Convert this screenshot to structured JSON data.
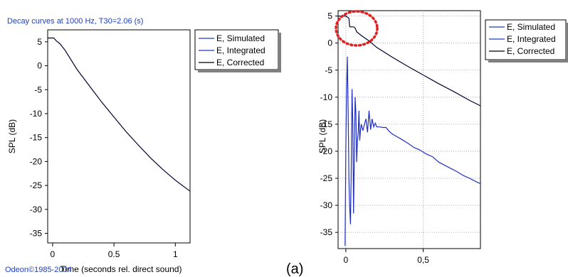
{
  "caption": "(a)",
  "chart_data": [
    {
      "type": "line",
      "title": "Decay curves at 1000 Hz, T30=2.06 (s)",
      "xlabel": "Time (seconds rel. direct sound)",
      "ylabel": "SPL (dB)",
      "footer": "Odeon©1985-2004",
      "xlim": [
        -0.04,
        1.12
      ],
      "ylim": [
        -37,
        7.5
      ],
      "x_ticks": [
        0,
        0.5,
        1
      ],
      "x_tick_labels": [
        "0",
        "0.5",
        "1"
      ],
      "y_ticks": [
        5,
        0,
        -5,
        -10,
        -15,
        -20,
        -25,
        -30,
        -35
      ],
      "y_tick_labels": [
        "5",
        "0",
        "-5",
        "-10",
        "-15",
        "-20",
        "-25",
        "-30",
        "-35"
      ],
      "grid": false,
      "legend_position": "top-right-outside",
      "legend": [
        {
          "label": "E, Simulated",
          "color": "#1f3fbf"
        },
        {
          "label": "E, Integrated",
          "color": "#1f3fbf"
        },
        {
          "label": "E, Corrected",
          "color": "#000000"
        }
      ],
      "series": [
        {
          "name": "E, Corrected",
          "color": "#000030",
          "x": [
            -0.04,
            0.01,
            0.03,
            0.06,
            0.1,
            0.2,
            0.3,
            0.4,
            0.5,
            0.6,
            0.7,
            0.8,
            0.9,
            1.0,
            1.12
          ],
          "y": [
            5.8,
            5.8,
            5.2,
            4.6,
            3.3,
            -0.8,
            -4.2,
            -7.6,
            -10.7,
            -13.8,
            -16.6,
            -19.3,
            -21.7,
            -23.9,
            -26.2
          ]
        }
      ]
    },
    {
      "type": "line",
      "title": "",
      "xlabel": "",
      "ylabel": "SPL (dB)",
      "xlim": [
        -0.05,
        0.87
      ],
      "ylim": [
        -38,
        6
      ],
      "x_ticks": [
        0,
        0.5
      ],
      "x_tick_labels": [
        "0",
        "0,5"
      ],
      "y_ticks": [
        5,
        0,
        -5,
        -10,
        -15,
        -20,
        -25,
        -30,
        -35
      ],
      "y_tick_labels": [
        "5",
        "0",
        "-5",
        "-10",
        "-15",
        "-20",
        "-25",
        "-30",
        "-35"
      ],
      "grid": true,
      "legend_position": "top-right-outside",
      "annotation": "dotted red circle around the initial plateau",
      "legend": [
        {
          "label": "E, Simulated",
          "color": "#1f3fbf"
        },
        {
          "label": "E, Integrated",
          "color": "#1f3fbf"
        },
        {
          "label": "E, Corrected",
          "color": "#000000"
        }
      ],
      "series": [
        {
          "name": "E, Corrected",
          "color": "#000030",
          "x": [
            -0.05,
            0.0,
            0.02,
            0.025,
            0.05,
            0.06,
            0.07,
            0.1,
            0.15,
            0.2,
            0.3,
            0.4,
            0.5,
            0.6,
            0.7,
            0.8,
            0.87
          ],
          "y": [
            5.0,
            5.0,
            4.6,
            3.0,
            3.0,
            2.8,
            2.1,
            1.4,
            0.4,
            -0.8,
            -2.6,
            -4.3,
            -5.9,
            -7.5,
            -9.0,
            -10.6,
            -11.6
          ]
        },
        {
          "name": "E, Simulated",
          "color": "#2030c0",
          "x": [
            -0.005,
            0.0,
            0.005,
            0.01,
            0.015,
            0.02,
            0.025,
            0.03,
            0.035,
            0.04,
            0.045,
            0.05,
            0.055,
            0.06,
            0.065,
            0.07,
            0.075,
            0.08,
            0.085,
            0.09,
            0.095,
            0.1,
            0.11,
            0.12,
            0.13,
            0.14,
            0.15,
            0.16,
            0.17,
            0.18,
            0.19,
            0.2,
            0.22,
            0.24,
            0.26,
            0.28,
            0.3,
            0.33,
            0.36,
            0.4,
            0.44,
            0.48,
            0.52,
            0.56,
            0.6,
            0.64,
            0.68,
            0.72,
            0.76,
            0.8,
            0.84,
            0.87
          ],
          "y": [
            -37.5,
            -19.0,
            -8.0,
            -2.5,
            -12.0,
            -25.0,
            -30.5,
            -33.5,
            -23.0,
            -8.5,
            -15.0,
            -31.5,
            -21.0,
            -10.0,
            -13.0,
            -22.0,
            -18.0,
            -16.5,
            -12.5,
            -18.0,
            -16.0,
            -15.0,
            -16.2,
            -15.0,
            -14.0,
            -16.5,
            -12.5,
            -16.0,
            -14.0,
            -15.5,
            -14.8,
            -15.5,
            -15.5,
            -15.6,
            -15.6,
            -16.3,
            -16.8,
            -17.3,
            -17.8,
            -18.5,
            -19.3,
            -19.8,
            -20.5,
            -21.0,
            -22.0,
            -22.6,
            -23.2,
            -23.8,
            -24.5,
            -25.0,
            -25.6,
            -26.0
          ]
        }
      ]
    }
  ]
}
